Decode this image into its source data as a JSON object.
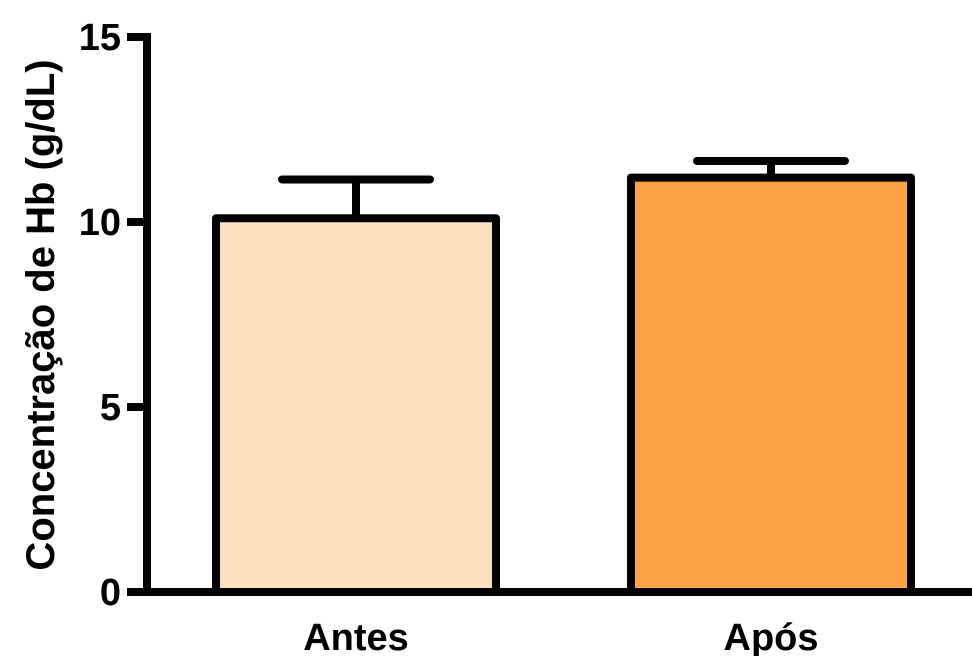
{
  "chart_data": {
    "type": "bar",
    "title": "",
    "xlabel": "",
    "ylabel": "Concentração de Hb (g/dL)",
    "categories": [
      "Antes",
      "Após"
    ],
    "values": [
      10.1,
      11.2
    ],
    "error_upper": [
      11.15,
      11.65
    ],
    "bar_colors": [
      "#fde0c0",
      "#fca244"
    ],
    "ylim": [
      0,
      15
    ],
    "yticks": [
      0,
      5,
      10,
      15
    ],
    "ytick_labels": [
      "0",
      "5",
      "10",
      "15"
    ],
    "grid": false,
    "legend": "none"
  }
}
